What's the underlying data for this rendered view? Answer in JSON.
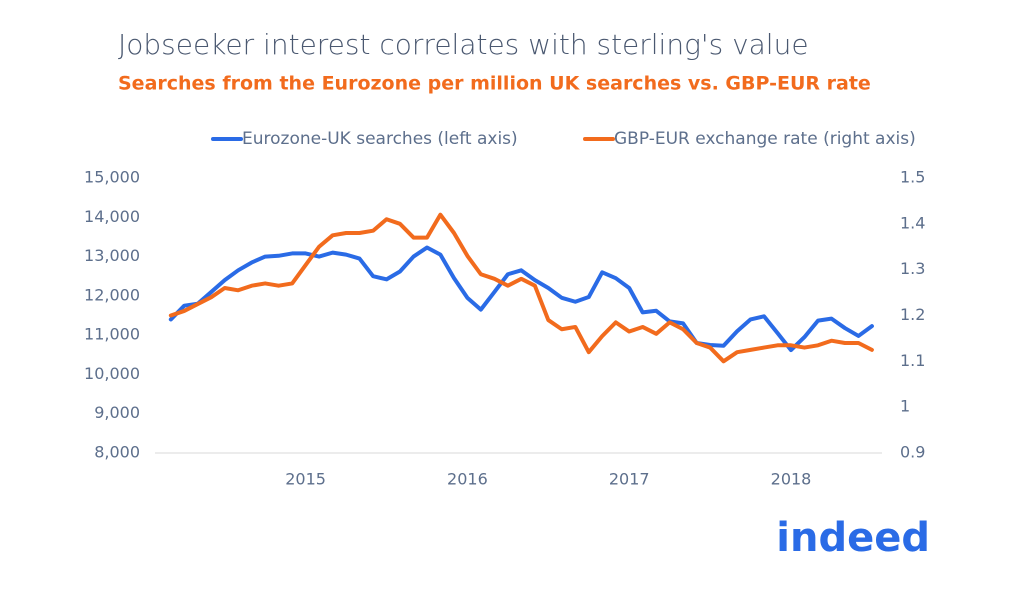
{
  "chart_data": {
    "type": "line",
    "title": "Jobseeker interest correlates with sterling's value",
    "subtitle": "Searches from the Eurozone per million UK searches vs. GBP-EUR rate",
    "legend": "top",
    "grid": false,
    "x": [
      2014.167,
      2014.25,
      2014.333,
      2014.417,
      2014.5,
      2014.583,
      2014.667,
      2014.75,
      2014.833,
      2014.917,
      2015.0,
      2015.083,
      2015.167,
      2015.25,
      2015.333,
      2015.417,
      2015.5,
      2015.583,
      2015.667,
      2015.75,
      2015.833,
      2015.917,
      2016.0,
      2016.083,
      2016.167,
      2016.25,
      2016.333,
      2016.417,
      2016.5,
      2016.583,
      2016.667,
      2016.75,
      2016.833,
      2016.917,
      2017.0,
      2017.083,
      2017.167,
      2017.25,
      2017.333,
      2017.417,
      2017.5,
      2017.583,
      2017.667,
      2017.75,
      2017.833,
      2017.917,
      2018.0,
      2018.083,
      2018.167,
      2018.25,
      2018.333,
      2018.417,
      2018.5
    ],
    "xlim": [
      2014.1,
      2018.55
    ],
    "xticks": [
      2015,
      2016,
      2017,
      2018
    ],
    "ylim": [
      8000,
      15000
    ],
    "yticks": [
      {
        "value": 8000,
        "label": "8,000"
      },
      {
        "value": 9000,
        "label": "9,000"
      },
      {
        "value": 10000,
        "label": "10,000"
      },
      {
        "value": 11000,
        "label": "11,000"
      },
      {
        "value": 12000,
        "label": "12,000"
      },
      {
        "value": 13000,
        "label": "13,000"
      },
      {
        "value": 14000,
        "label": "14,000"
      },
      {
        "value": 15000,
        "label": "15,000"
      }
    ],
    "y2lim": [
      0.9,
      1.5
    ],
    "y2ticks": [
      0.9,
      1,
      1.1,
      1.2,
      1.3,
      1.4,
      1.5
    ],
    "series": [
      {
        "name": "Eurozone-UK searches (left axis)",
        "color": "#2a6be6",
        "values": [
          11400,
          11750,
          11800,
          12100,
          12400,
          12650,
          12850,
          13000,
          13020,
          13080,
          13080,
          13000,
          13100,
          13050,
          12950,
          12500,
          12420,
          12620,
          13000,
          13230,
          13050,
          12450,
          11950,
          11650,
          12100,
          12550,
          12650,
          12400,
          12200,
          11950,
          11850,
          11970,
          12600,
          12450,
          12200,
          11580,
          11620,
          11350,
          11300,
          10800,
          10750,
          10730,
          11100,
          11400,
          11480,
          11050,
          10620,
          10950,
          11370,
          11420,
          11180,
          10980,
          11230
        ]
      },
      {
        "name": "GBP-EUR exchange rate (right axis)",
        "color": "#f26b1d",
        "axis": "y2",
        "values": [
          1.2,
          1.21,
          1.225,
          1.24,
          1.26,
          1.255,
          1.265,
          1.27,
          1.265,
          1.27,
          1.31,
          1.35,
          1.375,
          1.38,
          1.38,
          1.385,
          1.41,
          1.4,
          1.37,
          1.37,
          1.42,
          1.38,
          1.33,
          1.29,
          1.28,
          1.265,
          1.28,
          1.265,
          1.19,
          1.17,
          1.175,
          1.12,
          1.155,
          1.185,
          1.165,
          1.175,
          1.16,
          1.185,
          1.17,
          1.14,
          1.13,
          1.1,
          1.12,
          1.125,
          1.13,
          1.135,
          1.135,
          1.13,
          1.135,
          1.145,
          1.14,
          1.14,
          1.125
        ]
      }
    ]
  },
  "logo": "indeed"
}
